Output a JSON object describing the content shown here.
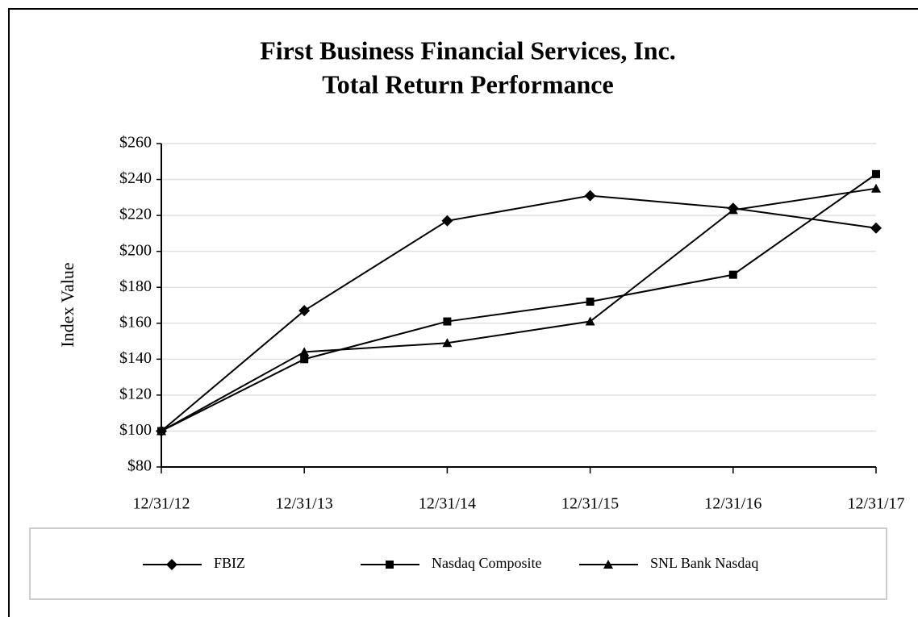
{
  "chart_data": {
    "type": "line",
    "title": "First Business Financial Services, Inc.",
    "subtitle": "Total Return Performance",
    "y_label": "Index Value",
    "categories": [
      "12/31/12",
      "12/31/13",
      "12/31/14",
      "12/31/15",
      "12/31/16",
      "12/31/17"
    ],
    "series": [
      {
        "name": "FBIZ",
        "color": "#000000",
        "marker": "diamond",
        "values": [
          100,
          167,
          217,
          231,
          224,
          213
        ]
      },
      {
        "name": "Nasdaq Composite",
        "color": "#000000",
        "marker": "square",
        "values": [
          100,
          140,
          161,
          172,
          187,
          243
        ]
      },
      {
        "name": "SNL Bank Nasdaq",
        "color": "#000000",
        "marker": "triangle",
        "values": [
          100,
          144,
          149,
          161,
          223,
          235
        ]
      }
    ],
    "ylim": [
      80,
      260
    ],
    "yticks": [
      {
        "value": 80,
        "label": "$80"
      },
      {
        "value": 100,
        "label": "$100"
      },
      {
        "value": 120,
        "label": "$120"
      },
      {
        "value": 140,
        "label": "$140"
      },
      {
        "value": 160,
        "label": "$160"
      },
      {
        "value": 180,
        "label": "$180"
      },
      {
        "value": 200,
        "label": "$200"
      },
      {
        "value": 220,
        "label": "$220"
      },
      {
        "value": 240,
        "label": "$240"
      },
      {
        "value": 260,
        "label": "$260"
      }
    ],
    "grid": true,
    "legend": "bottom"
  }
}
